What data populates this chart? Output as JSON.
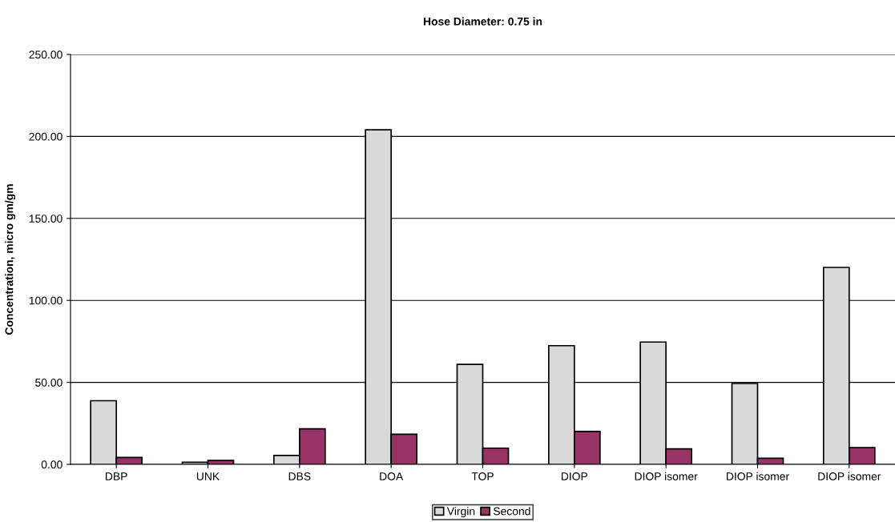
{
  "chart_data": {
    "type": "bar",
    "title": "Hose Diameter: 0.75 in",
    "ylabel": "Concentration, micro gm/gm",
    "categories": [
      "DBP",
      "UNK",
      "DBS",
      "DOA",
      "TOP",
      "DIOP",
      "DIOP isomer",
      "DIOP isomer",
      "DIOP isomer"
    ],
    "series": [
      {
        "name": "Virgin",
        "color": "#d9d9d9",
        "values": [
          38.8,
          1.3,
          5.4,
          204.0,
          61.0,
          72.4,
          74.6,
          49.3,
          120.1
        ]
      },
      {
        "name": "Second",
        "color": "#993366",
        "values": [
          4.2,
          2.4,
          21.7,
          18.4,
          9.9,
          20.1,
          9.5,
          3.7,
          10.2
        ]
      }
    ],
    "ylim": [
      0,
      250
    ],
    "yticks": [
      {
        "value": 0,
        "label": "0.00"
      },
      {
        "value": 50,
        "label": "50.00"
      },
      {
        "value": 100,
        "label": "100.00"
      },
      {
        "value": 150,
        "label": "150.00"
      },
      {
        "value": 200,
        "label": "200.00"
      },
      {
        "value": 250,
        "label": "250.00"
      }
    ],
    "grid": "y",
    "legend": "bottom"
  }
}
